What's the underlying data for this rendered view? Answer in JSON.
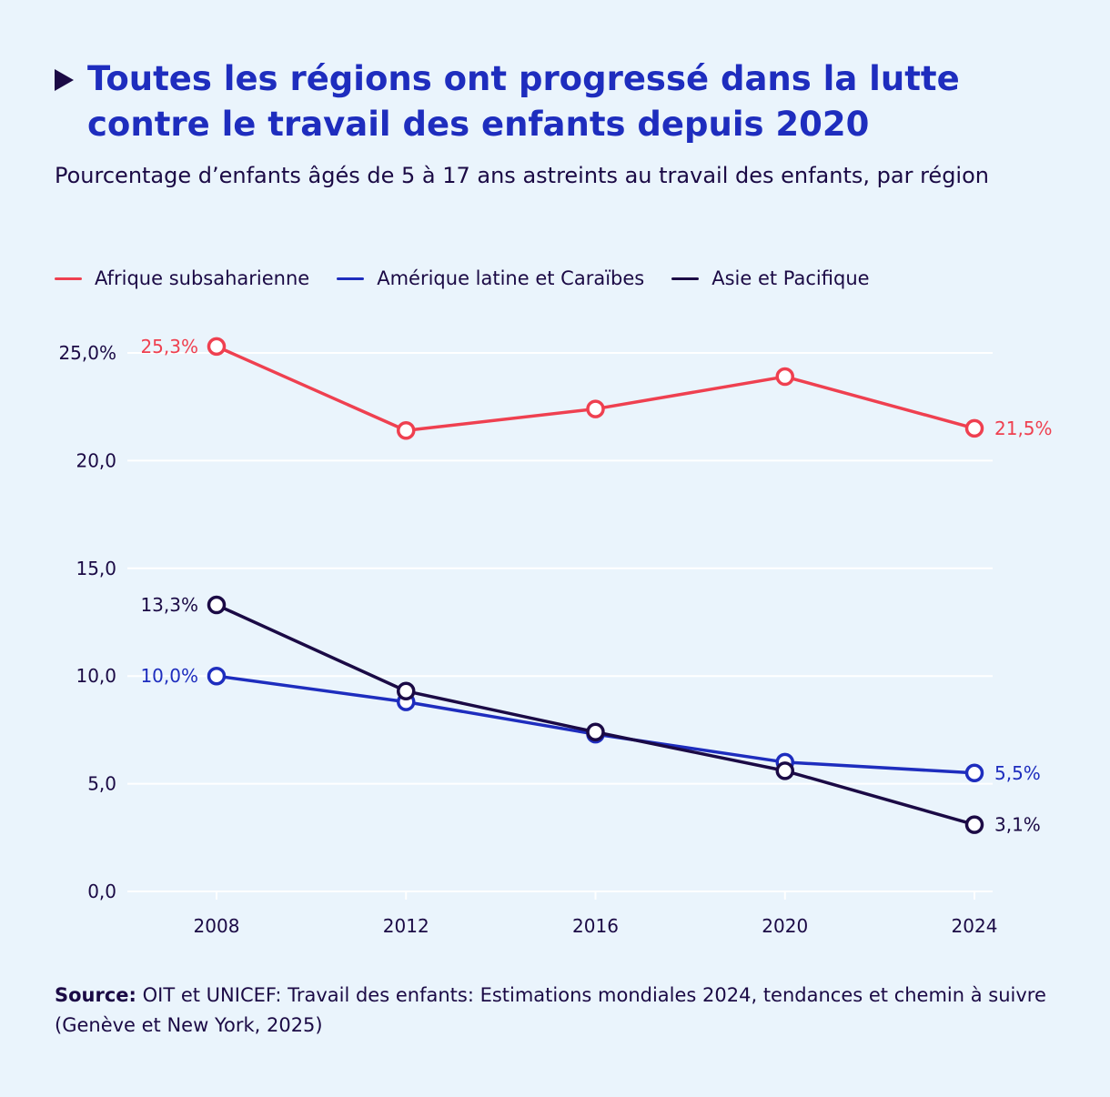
{
  "header": {
    "title": "Toutes les régions ont progressé dans la lutte contre le travail des enfants depuis 2020",
    "subtitle": "Pourcentage d’enfants âgés de 5 à 17 ans astreints au travail des enfants, par région"
  },
  "source": {
    "label": "Source:",
    "text": " OIT et UNICEF: Travail des enfants: Estimations mondiales 2024, tendances et chemin à suivre (Genève et New York, 2025)"
  },
  "colors": {
    "background": "#EAF4FC",
    "title": "#1E2DBE",
    "text": "#1B0A45",
    "grid": "#FFFFFF"
  },
  "chart_data": {
    "type": "line",
    "x": [
      2008,
      2012,
      2016,
      2020,
      2024
    ],
    "xlim": [
      2006.3,
      2024.3
    ],
    "ylim": [
      0,
      25
    ],
    "yticks": [
      0,
      5,
      10,
      15,
      20,
      25
    ],
    "ytick_labels": [
      "0,0",
      "5,0",
      "10,0",
      "15,0",
      "20,0",
      "25,0%"
    ],
    "xtick_labels": [
      "2008",
      "2012",
      "2016",
      "2020",
      "2024"
    ],
    "grid": true,
    "legend_position": "top-left",
    "series": [
      {
        "name": "Afrique subsaharienne",
        "color": "#EF4050",
        "values": [
          25.3,
          21.4,
          22.4,
          23.9,
          21.5
        ],
        "start_label": "25,3%",
        "end_label": "21,5%"
      },
      {
        "name": "Amérique latine et Caraïbes",
        "color": "#1E2DBE",
        "values": [
          10.0,
          8.8,
          7.3,
          6.0,
          5.5
        ],
        "start_label": "10,0%",
        "end_label": "5,5%"
      },
      {
        "name": "Asie et Pacifique",
        "color": "#1B0A45",
        "values": [
          13.3,
          9.3,
          7.4,
          5.6,
          3.1
        ],
        "start_label": "13,3%",
        "end_label": "3,1%"
      }
    ]
  }
}
